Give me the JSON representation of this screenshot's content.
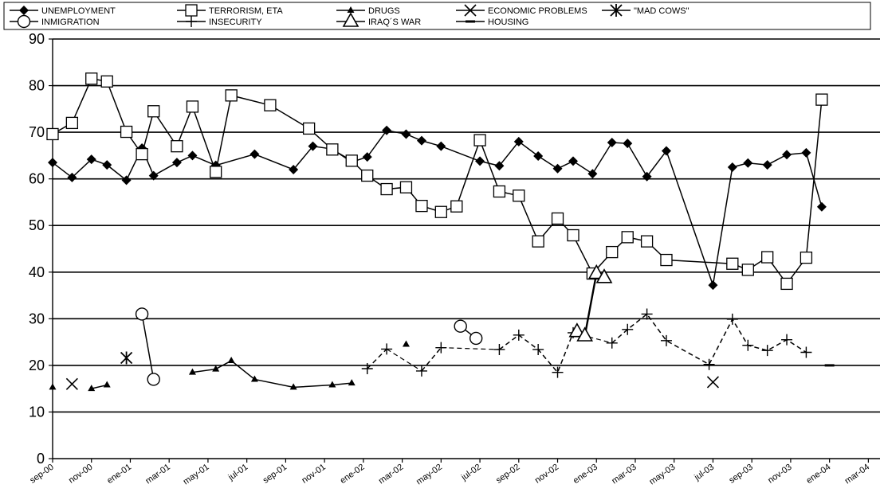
{
  "chart_data": {
    "type": "line",
    "title": "",
    "xlabel": "",
    "ylabel": "",
    "ylim": [
      0,
      90
    ],
    "yticks": [
      0,
      10,
      20,
      30,
      40,
      50,
      60,
      70,
      80,
      90
    ],
    "grid": "horizontal",
    "legend_position": "top",
    "x_tick_labels": [
      "sep-00",
      "nov-00",
      "ene-01",
      "mar-01",
      "may-01",
      "jul-01",
      "sep-01",
      "nov-01",
      "ene-02",
      "mar-02",
      "may-02",
      "jul-02",
      "sep-02",
      "nov-02",
      "ene-03",
      "mar-03",
      "may-03",
      "jul-03",
      "sep-03",
      "nov-03",
      "ene-04",
      "mar-04"
    ],
    "x_domain": [
      0,
      21.3
    ],
    "series": [
      {
        "name": "UNEMPLOYMENT",
        "marker": "diamond-filled",
        "points": [
          [
            0,
            63.5
          ],
          [
            0.5,
            60.3
          ],
          [
            1,
            64.2
          ],
          [
            1.4,
            63
          ],
          [
            1.9,
            59.7
          ],
          [
            2.3,
            66.6
          ],
          [
            2.6,
            60.7
          ],
          [
            3.2,
            63.5
          ],
          [
            3.6,
            65
          ],
          [
            4.2,
            62.9
          ],
          [
            5.2,
            65.3
          ],
          [
            6.2,
            62
          ],
          [
            6.7,
            67
          ],
          [
            7.2,
            66.4
          ],
          [
            7.7,
            63.6
          ],
          [
            8.1,
            64.7
          ],
          [
            8.6,
            70.4
          ],
          [
            9.1,
            69.6
          ],
          [
            9.5,
            68.2
          ],
          [
            10,
            67
          ],
          [
            11,
            63.8
          ],
          [
            11.5,
            62.8
          ],
          [
            12,
            68
          ],
          [
            12.5,
            64.9
          ],
          [
            13,
            62.2
          ],
          [
            13.4,
            63.8
          ],
          [
            13.9,
            61.1
          ],
          [
            14.4,
            67.8
          ],
          [
            14.8,
            67.6
          ],
          [
            15.3,
            60.5
          ],
          [
            15.8,
            66
          ],
          [
            17,
            37.2
          ],
          [
            17.5,
            62.5
          ],
          [
            17.9,
            63.4
          ],
          [
            18.4,
            63
          ],
          [
            18.9,
            65.2
          ],
          [
            19.4,
            65.6
          ],
          [
            19.8,
            54
          ]
        ]
      },
      {
        "name": "TERRORISM, ETA",
        "marker": "square-open",
        "points": [
          [
            0,
            69.6
          ],
          [
            0.5,
            72
          ],
          [
            1,
            81.5
          ],
          [
            1.4,
            80.9
          ],
          [
            1.9,
            70.1
          ],
          [
            2.3,
            65.3
          ],
          [
            2.6,
            74.5
          ],
          [
            3.2,
            67
          ],
          [
            3.6,
            75.5
          ],
          [
            4.2,
            61.5
          ],
          [
            4.6,
            77.9
          ],
          [
            5.6,
            75.8
          ],
          [
            6.6,
            70.8
          ],
          [
            7.2,
            66.3
          ],
          [
            7.7,
            63.9
          ],
          [
            8.1,
            60.7
          ],
          [
            8.6,
            57.8
          ],
          [
            9.1,
            58.2
          ],
          [
            9.5,
            54.2
          ],
          [
            10,
            52.9
          ],
          [
            10.4,
            54.1
          ],
          [
            11,
            68.3
          ],
          [
            11.5,
            57.3
          ],
          [
            12,
            56.4
          ],
          [
            12.5,
            46.6
          ],
          [
            13,
            51.5
          ],
          [
            13.4,
            47.9
          ],
          [
            13.9,
            39.7
          ],
          [
            14.4,
            44.3
          ],
          [
            14.8,
            47.5
          ],
          [
            15.3,
            46.6
          ],
          [
            15.8,
            42.6
          ],
          [
            17.5,
            41.8
          ],
          [
            17.9,
            40.5
          ],
          [
            18.4,
            43.2
          ],
          [
            18.9,
            37.5
          ],
          [
            19.4,
            43.1
          ],
          [
            19.8,
            77
          ]
        ]
      },
      {
        "name": "DRUGS",
        "marker": "triangle-small-filled",
        "segments": [
          [
            [
              0,
              15.3
            ]
          ],
          [
            [
              1,
              15
            ],
            [
              1.4,
              15.8
            ]
          ],
          [
            [
              3.6,
              18.5
            ],
            [
              4.2,
              19.2
            ],
            [
              4.6,
              21
            ],
            [
              5.2,
              17
            ],
            [
              6.2,
              15.3
            ],
            [
              7.2,
              15.8
            ],
            [
              7.7,
              16.2
            ]
          ],
          [
            [
              9.1,
              24.5
            ]
          ]
        ]
      },
      {
        "name": "ECONOMIC PROBLEMS",
        "marker": "x",
        "segments": [
          [
            [
              0.5,
              16
            ]
          ],
          [
            [
              17,
              16.4
            ]
          ]
        ]
      },
      {
        "name": "\"MAD COWS\"",
        "marker": "asterisk",
        "segments": [
          [
            [
              1.9,
              21.6
            ]
          ]
        ]
      },
      {
        "name": "INMIGRATION",
        "marker": "circle-open",
        "segments": [
          [
            [
              2.3,
              31
            ],
            [
              2.6,
              17
            ]
          ],
          [
            [
              10.5,
              28.4
            ],
            [
              10.9,
              25.8
            ]
          ]
        ]
      },
      {
        "name": "INSECURITY",
        "marker": "plus",
        "segments": [
          [
            [
              8.1,
              19.3
            ],
            [
              8.6,
              23.5
            ]
          ],
          [
            [
              9.5,
              18.8
            ],
            [
              10,
              23.8
            ]
          ],
          [
            [
              11.5,
              23.4
            ],
            [
              12,
              26.5
            ],
            [
              12.5,
              23.4
            ],
            [
              13,
              18.5
            ],
            [
              13.4,
              27
            ]
          ],
          [
            [
              14.4,
              24.8
            ],
            [
              14.8,
              27.7
            ],
            [
              15.3,
              31
            ],
            [
              15.8,
              25.3
            ],
            [
              16.9,
              20.2
            ],
            [
              17.5,
              29.9
            ],
            [
              17.9,
              24.3
            ],
            [
              18.4,
              23.2
            ],
            [
              18.9,
              25.5
            ],
            [
              19.4,
              22.8
            ]
          ]
        ],
        "dashed_between_segments": true
      },
      {
        "name": "IRAQ´S WAR",
        "marker": "triangle-open",
        "segments": [
          [
            [
              13.5,
              27.2
            ],
            [
              13.7,
              26.3
            ],
            [
              14,
              39.7
            ],
            [
              14.2,
              38.8
            ]
          ]
        ]
      },
      {
        "name": "HOUSING",
        "marker": "dash",
        "segments": [
          [
            [
              20,
              20
            ]
          ]
        ]
      }
    ]
  }
}
